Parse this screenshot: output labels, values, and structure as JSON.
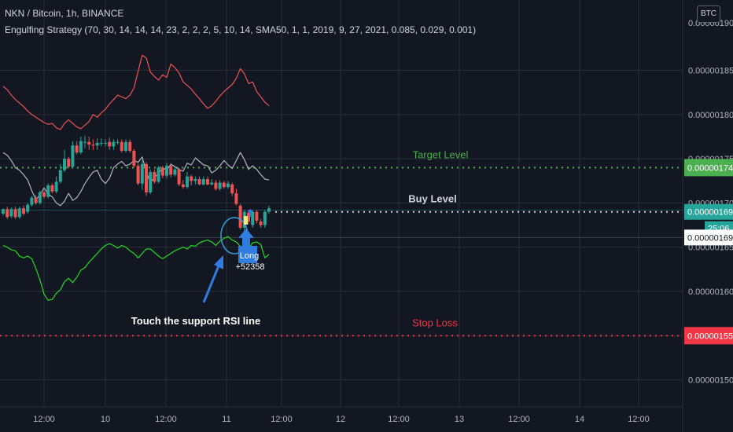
{
  "header": {
    "symbol_line": "NKN / Bitcoin, 1h, BINANCE",
    "indicator_line": "Engulfing Strategy (70, 30, 14, 14, 14, 23, 2, 2, 2, 5, 10, 14, SMA50, 1, 1, 2019, 9, 27, 2021, 0.085, 0.029, 0.001)",
    "currency_button": "BTC"
  },
  "colors": {
    "background": "#131722",
    "grid": "#2a2e39",
    "up_candle": "#26a69a",
    "down_candle": "#ef5350",
    "target": "#4caf50",
    "stop": "#f23645",
    "buy": "#d1d4dc",
    "arrow": "#2f7de1"
  },
  "chart_data": {
    "type": "candlestick",
    "y_axis": {
      "min": 1.4695e-06,
      "max": 1.9295e-06,
      "tick_labels": [
        "0.00000185",
        "0.00000180",
        "0.00000175",
        "0.00000170",
        "0.00000165",
        "0.00000160",
        "0.00000155",
        "0.00000150"
      ],
      "tick_values": [
        1.85e-06,
        1.8e-06,
        1.75e-06,
        1.7e-06,
        1.65e-06,
        1.6e-06,
        1.55e-06,
        1.5e-06
      ],
      "partial_top_label": "0.00000190"
    },
    "x_axis": {
      "tick_labels": [
        "12:00",
        "10",
        "12:00",
        "11",
        "12:00",
        "12",
        "12:00",
        "13",
        "12:00",
        "14",
        "12:00"
      ]
    },
    "levels": [
      {
        "label": "Target Level",
        "value": 1.74e-06,
        "price_label": "0.00000174",
        "color": "#4caf50"
      },
      {
        "label": "Buy Level",
        "value": 1.69e-06,
        "price_label": "0.00000169",
        "color": "#d1d4dc"
      },
      {
        "label": "Stop Loss",
        "value": 1.55e-06,
        "price_label": "0.00000155",
        "color": "#f23645"
      }
    ],
    "last_price": {
      "price_label": "0.00000169",
      "countdown": "25:06",
      "value": 1.69e-06
    },
    "white_label": {
      "price_label": "0.00000169",
      "value": 1.661e-06
    },
    "candles": [
      [
        1.688e-06,
        1.693e-06,
        1.694e-06,
        1.686e-06
      ],
      [
        1.693e-06,
        1.684e-06,
        1.696e-06,
        1.682e-06
      ],
      [
        1.685e-06,
        1.693e-06,
        1.695e-06,
        1.683e-06
      ],
      [
        1.693e-06,
        1.684e-06,
        1.696e-06,
        1.682e-06
      ],
      [
        1.684e-06,
        1.694e-06,
        1.696e-06,
        1.682e-06
      ],
      [
        1.694e-06,
        1.688e-06,
        1.697e-06,
        1.686e-06
      ],
      [
        1.69e-06,
        1.698e-06,
        1.7e-06,
        1.688e-06
      ],
      [
        1.698e-06,
        1.706e-06,
        1.708e-06,
        1.696e-06
      ],
      [
        1.706e-06,
        1.7e-06,
        1.709e-06,
        1.698e-06
      ],
      [
        1.7e-06,
        1.712e-06,
        1.714e-06,
        1.698e-06
      ],
      [
        1.712e-06,
        1.707e-06,
        1.714e-06,
        1.705e-06
      ],
      [
        1.707e-06,
        1.72e-06,
        1.722e-06,
        1.705e-06
      ],
      [
        1.72e-06,
        1.713e-06,
        1.722e-06,
        1.711e-06
      ],
      [
        1.713e-06,
        1.724e-06,
        1.73e-06,
        1.711e-06
      ],
      [
        1.724e-06,
        1.737e-06,
        1.744e-06,
        1.722e-06
      ],
      [
        1.737e-06,
        1.75e-06,
        1.76e-06,
        1.735e-06
      ],
      [
        1.75e-06,
        1.741e-06,
        1.752e-06,
        1.739e-06
      ],
      [
        1.741e-06,
        1.765e-06,
        1.77e-06,
        1.74e-06
      ],
      [
        1.765e-06,
        1.757e-06,
        1.77e-06,
        1.755e-06
      ],
      [
        1.757e-06,
        1.77e-06,
        1.775e-06,
        1.755e-06
      ],
      [
        1.769e-06,
        1.769e-06,
        1.776e-06,
        1.762e-06
      ],
      [
        1.769e-06,
        1.766e-06,
        1.775e-06,
        1.76e-06
      ],
      [
        1.766e-06,
        1.765e-06,
        1.772e-06,
        1.76e-06
      ],
      [
        1.765e-06,
        1.768e-06,
        1.773e-06,
        1.76e-06
      ],
      [
        1.768e-06,
        1.768e-06,
        1.773e-06,
        1.764e-06
      ],
      [
        1.768e-06,
        1.768e-06,
        1.772e-06,
        1.764e-06
      ],
      [
        1.769e-06,
        1.764e-06,
        1.774e-06,
        1.76e-06
      ],
      [
        1.764e-06,
        1.769e-06,
        1.772e-06,
        1.76e-06
      ],
      [
        1.769e-06,
        1.769e-06,
        1.772e-06,
        1.766e-06
      ],
      [
        1.769e-06,
        1.759e-06,
        1.772e-06,
        1.757e-06
      ],
      [
        1.759e-06,
        1.769e-06,
        1.772e-06,
        1.757e-06
      ],
      [
        1.769e-06,
        1.759e-06,
        1.772e-06,
        1.757e-06
      ],
      [
        1.759e-06,
        1.742e-06,
        1.761e-06,
        1.74e-06
      ],
      [
        1.742e-06,
        1.722e-06,
        1.745e-06,
        1.72e-06
      ],
      [
        1.722e-06,
        1.744e-06,
        1.748e-06,
        1.715e-06
      ],
      [
        1.744e-06,
        1.712e-06,
        1.746e-06,
        1.708e-06
      ],
      [
        1.712e-06,
        1.735e-06,
        1.738e-06,
        1.71e-06
      ],
      [
        1.735e-06,
        1.724e-06,
        1.738e-06,
        1.722e-06
      ],
      [
        1.724e-06,
        1.74e-06,
        1.742e-06,
        1.722e-06
      ],
      [
        1.74e-06,
        1.731e-06,
        1.742e-06,
        1.728e-06
      ],
      [
        1.731e-06,
        1.742e-06,
        1.745e-06,
        1.728e-06
      ],
      [
        1.742e-06,
        1.732e-06,
        1.745e-06,
        1.729e-06
      ],
      [
        1.732e-06,
        1.738e-06,
        1.741e-06,
        1.73e-06
      ],
      [
        1.738e-06,
        1.721e-06,
        1.74e-06,
        1.719e-06
      ],
      [
        1.721e-06,
        1.718e-06,
        1.726e-06,
        1.716e-06
      ],
      [
        1.718e-06,
        1.73e-06,
        1.735e-06,
        1.716e-06
      ],
      [
        1.73e-06,
        1.725e-06,
        1.732e-06,
        1.72e-06
      ],
      [
        1.725e-06,
        1.727e-06,
        1.73e-06,
        1.721e-06
      ],
      [
        1.727e-06,
        1.721e-06,
        1.73e-06,
        1.72e-06
      ],
      [
        1.721e-06,
        1.727e-06,
        1.73e-06,
        1.72e-06
      ],
      [
        1.727e-06,
        1.721e-06,
        1.73e-06,
        1.72e-06
      ],
      [
        1.721e-06,
        1.723e-06,
        1.727e-06,
        1.72e-06
      ],
      [
        1.723e-06,
        1.716e-06,
        1.726e-06,
        1.714e-06
      ],
      [
        1.716e-06,
        1.723e-06,
        1.726e-06,
        1.714e-06
      ],
      [
        1.723e-06,
        1.718e-06,
        1.725e-06,
        1.716e-06
      ],
      [
        1.718e-06,
        1.722e-06,
        1.725e-06,
        1.716e-06
      ],
      [
        1.721e-06,
        1.711e-06,
        1.723e-06,
        1.708e-06
      ],
      [
        1.711e-06,
        1.699e-06,
        1.716e-06,
        1.697e-06
      ],
      [
        1.697e-06,
        1.672e-06,
        1.699e-06,
        1.67e-06
      ],
      [
        1.672e-06,
        1.69e-06,
        1.692e-06,
        1.668e-06
      ],
      [
        1.689e-06,
        1.679e-06,
        1.692e-06,
        1.676e-06
      ],
      [
        1.675e-06,
        1.69e-06,
        1.692e-06,
        1.672e-06
      ],
      [
        1.69e-06,
        1.68e-06,
        1.692e-06,
        1.677e-06
      ],
      [
        1.679e-06,
        1.675e-06,
        1.682e-06,
        1.672e-06
      ],
      [
        1.675e-06,
        1.69e-06,
        1.692e-06,
        1.672e-06
      ],
      [
        1.69e-06,
        1.694e-06,
        1.697e-06,
        1.688e-06
      ]
    ],
    "series": [
      {
        "role": "upper band",
        "color": "#ef5350",
        "values": [
          1.832e-06,
          1.828e-06,
          1.822e-06,
          1.817e-06,
          1.813e-06,
          1.809e-06,
          1.804e-06,
          1.8e-06,
          1.797e-06,
          1.794e-06,
          1.791e-06,
          1.789e-06,
          1.79e-06,
          1.785e-06,
          1.783e-06,
          1.79e-06,
          1.794e-06,
          1.79e-06,
          1.786e-06,
          1.784e-06,
          1.788e-06,
          1.792e-06,
          1.8e-06,
          1.797e-06,
          1.802e-06,
          1.806e-06,
          1.812e-06,
          1.817e-06,
          1.822e-06,
          1.82e-06,
          1.818e-06,
          1.822e-06,
          1.83e-06,
          1.849e-06,
          1.867e-06,
          1.864e-06,
          1.848e-06,
          1.843e-06,
          1.839e-06,
          1.845e-06,
          1.842e-06,
          1.857e-06,
          1.853e-06,
          1.847e-06,
          1.837e-06,
          1.833e-06,
          1.829e-06,
          1.823e-06,
          1.818e-06,
          1.812e-06,
          1.807e-06,
          1.81e-06,
          1.815e-06,
          1.821e-06,
          1.826e-06,
          1.83e-06,
          1.834e-06,
          1.841e-06,
          1.852e-06,
          1.846e-06,
          1.835e-06,
          1.837e-06,
          1.826e-06,
          1.82e-06,
          1.814e-06,
          1.81e-06
        ]
      },
      {
        "role": "oscillator",
        "color": "#b2b5be",
        "values": [
          1.757e-06,
          1.754e-06,
          1.748e-06,
          1.74e-06,
          1.737e-06,
          1.732e-06,
          1.726e-06,
          1.714e-06,
          1.704e-06,
          1.709e-06,
          1.717e-06,
          1.71e-06,
          1.707e-06,
          1.7e-06,
          1.697e-06,
          1.702e-06,
          1.711e-06,
          1.703e-06,
          1.706e-06,
          1.713e-06,
          1.722e-06,
          1.729e-06,
          1.735e-06,
          1.737e-06,
          1.727e-06,
          1.722e-06,
          1.728e-06,
          1.74e-06,
          1.744e-06,
          1.747e-06,
          1.742e-06,
          1.744e-06,
          1.748e-06,
          1.746e-06,
          1.752e-06,
          1.735e-06,
          1.723e-06,
          1.729e-06,
          1.733e-06,
          1.74e-06,
          1.737e-06,
          1.744e-06,
          1.741e-06,
          1.738e-06,
          1.736e-06,
          1.745e-06,
          1.743e-06,
          1.751e-06,
          1.747e-06,
          1.743e-06,
          1.742e-06,
          1.734e-06,
          1.737e-06,
          1.742e-06,
          1.748e-06,
          1.743e-06,
          1.739e-06,
          1.748e-06,
          1.757e-06,
          1.749e-06,
          1.738e-06,
          1.742e-06,
          1.738e-06,
          1.732e-06,
          1.727e-06,
          1.726e-06
        ]
      },
      {
        "role": "lower band",
        "color": "#1fdc1f",
        "values": [
          1.652e-06,
          1.65e-06,
          1.647e-06,
          1.646e-06,
          1.64e-06,
          1.638e-06,
          1.64e-06,
          1.637e-06,
          1.626e-06,
          1.613e-06,
          1.597e-06,
          1.59e-06,
          1.591e-06,
          1.598e-06,
          1.602e-06,
          1.611e-06,
          1.615e-06,
          1.61e-06,
          1.616e-06,
          1.624e-06,
          1.627e-06,
          1.633e-06,
          1.638e-06,
          1.643e-06,
          1.648e-06,
          1.652e-06,
          1.654e-06,
          1.652e-06,
          1.649e-06,
          1.652e-06,
          1.65e-06,
          1.646e-06,
          1.643e-06,
          1.638e-06,
          1.643e-06,
          1.648e-06,
          1.648e-06,
          1.644e-06,
          1.64e-06,
          1.637e-06,
          1.64e-06,
          1.643e-06,
          1.646e-06,
          1.648e-06,
          1.65e-06,
          1.648e-06,
          1.652e-06,
          1.651e-06,
          1.655e-06,
          1.657e-06,
          1.658e-06,
          1.656e-06,
          1.652e-06,
          1.657e-06,
          1.66e-06,
          1.662e-06,
          1.658e-06,
          1.656e-06,
          1.651e-06,
          1.646e-06,
          1.648e-06,
          1.655e-06,
          1.656e-06,
          1.653e-06,
          1.638e-06,
          1.642e-06
        ]
      }
    ],
    "annotations": [
      {
        "type": "signal",
        "label": "Long",
        "value_text": "+52358"
      },
      {
        "type": "callout",
        "text": "Touch the support RSI line"
      }
    ]
  }
}
